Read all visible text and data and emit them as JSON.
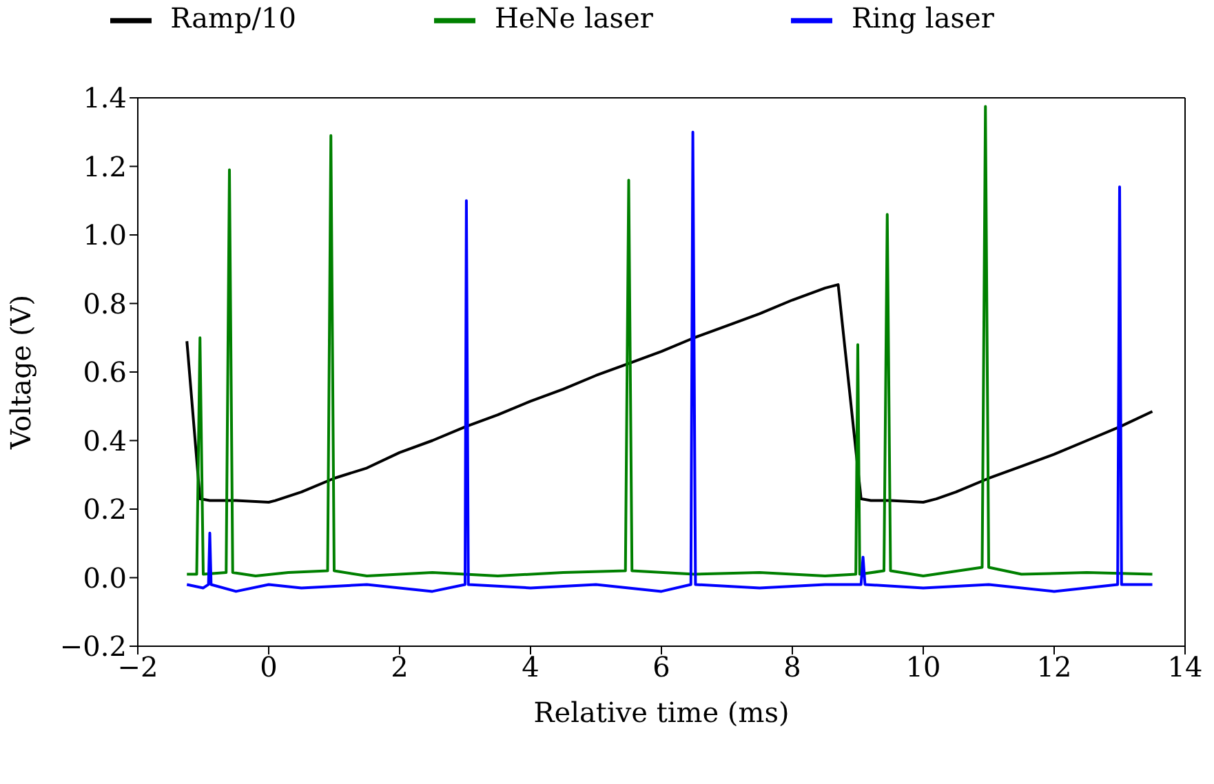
{
  "chart_data": {
    "type": "line",
    "xlabel": "Relative time (ms)",
    "ylabel": "Voltage (V)",
    "xlim": [
      -2,
      14
    ],
    "xticks": [
      {
        "value": -2,
        "label": "−2"
      },
      0,
      2,
      4,
      6,
      8,
      10,
      12,
      14
    ],
    "ylim": [
      -0.2,
      1.4
    ],
    "yticks": [
      {
        "value": -0.2,
        "label": "−0.2"
      },
      {
        "value": 0,
        "label": "0.0"
      },
      0.2,
      0.4,
      0.6,
      0.8,
      {
        "value": 1,
        "label": "1.0"
      },
      1.2,
      1.4
    ],
    "grid": false,
    "legend": "top",
    "marker": "none",
    "line_style": "solid",
    "series": [
      {
        "name": "Ramp/10",
        "color": "#000000",
        "x": [
          -1.25,
          -1.05,
          -0.9,
          -0.5,
          0,
          0.1,
          0.5,
          1,
          1.5,
          2,
          2.5,
          3,
          3.5,
          4,
          4.5,
          5,
          5.5,
          6,
          6.5,
          7,
          7.5,
          8,
          8.5,
          8.7,
          9.05,
          9.2,
          9.5,
          10,
          10.2,
          10.5,
          11,
          11.5,
          12,
          12.5,
          13,
          13.5
        ],
        "values": [
          0.69,
          0.23,
          0.225,
          0.225,
          0.22,
          0.225,
          0.25,
          0.29,
          0.32,
          0.365,
          0.4,
          0.44,
          0.475,
          0.515,
          0.55,
          0.59,
          0.625,
          0.66,
          0.7,
          0.735,
          0.77,
          0.81,
          0.845,
          0.855,
          0.23,
          0.225,
          0.225,
          0.22,
          0.23,
          0.25,
          0.29,
          0.325,
          0.36,
          0.4,
          0.44,
          0.485
        ]
      },
      {
        "name": "HeNe laser",
        "color": "#008000",
        "x": [
          -1.25,
          -1.1,
          -1.05,
          -1,
          -0.65,
          -0.6,
          -0.55,
          -0.2,
          0.3,
          0.9,
          0.95,
          1,
          1.5,
          2.5,
          3.5,
          4.5,
          5.45,
          5.5,
          5.55,
          6.5,
          7.5,
          8.5,
          8.97,
          9,
          9.03,
          9.4,
          9.45,
          9.5,
          10,
          10.9,
          10.95,
          11,
          11.5,
          12.5,
          13.5
        ],
        "values": [
          0.01,
          0.01,
          0.7,
          0.01,
          0.015,
          1.19,
          0.015,
          0.005,
          0.015,
          0.02,
          1.29,
          0.02,
          0.005,
          0.015,
          0.005,
          0.015,
          0.02,
          1.16,
          0.02,
          0.01,
          0.015,
          0.005,
          0.01,
          0.68,
          0.01,
          0.02,
          1.06,
          0.02,
          0.005,
          0.03,
          1.375,
          0.03,
          0.01,
          0.015,
          0.01
        ]
      },
      {
        "name": "Ring laser",
        "color": "#0000ff",
        "x": [
          -1.25,
          -1,
          -0.92,
          -0.9,
          -0.88,
          -0.5,
          0,
          0.5,
          1.5,
          2.5,
          3,
          3.02,
          3.05,
          4,
          5,
          6,
          6.45,
          6.48,
          6.52,
          7.5,
          8.5,
          9.05,
          9.08,
          9.11,
          10,
          11,
          12,
          12.97,
          13,
          13.03,
          13.5
        ],
        "values": [
          -0.02,
          -0.03,
          -0.02,
          0.13,
          -0.02,
          -0.04,
          -0.02,
          -0.03,
          -0.02,
          -0.04,
          -0.02,
          1.1,
          -0.02,
          -0.03,
          -0.02,
          -0.04,
          -0.02,
          1.3,
          -0.02,
          -0.03,
          -0.02,
          -0.02,
          0.06,
          -0.02,
          -0.03,
          -0.02,
          -0.04,
          -0.02,
          1.14,
          -0.02,
          -0.02
        ]
      }
    ]
  }
}
